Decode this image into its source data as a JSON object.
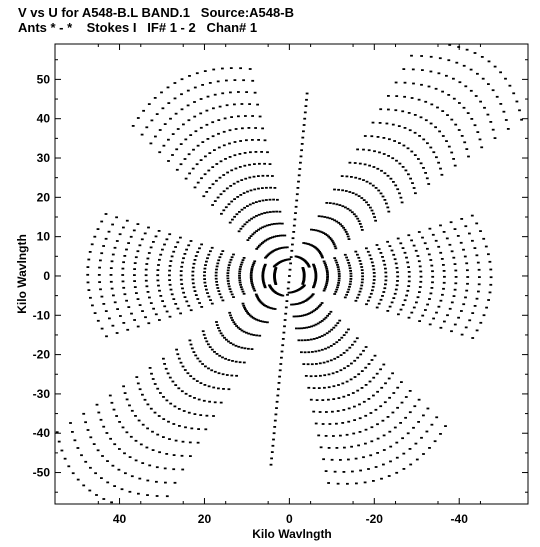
{
  "header": {
    "line1": "V vs U for A548-B.L BAND.1   Source:A548-B",
    "line2": "Ants * - *    Stokes I   IF# 1 - 2   Chan# 1"
  },
  "chart_data": {
    "type": "scatter",
    "title": "V vs U for A548-B.L BAND.1   Source:A548-B",
    "subtitle": "Ants * - *    Stokes I   IF# 1 - 2   Chan# 1",
    "xlabel": "Kilo Wavlngth",
    "ylabel": "Kilo Wavlngth",
    "xlim": [
      55.2,
      -56.2
    ],
    "ylim": [
      -58,
      59
    ],
    "x_reversed": true,
    "xticks": [
      40,
      20,
      0,
      -20,
      -40
    ],
    "yticks": [
      50,
      40,
      30,
      20,
      10,
      0,
      -10,
      -20,
      -30,
      -40,
      -50
    ],
    "grid": false,
    "arm_tips": [
      {
        "u": -50,
        "v": 57
      },
      {
        "u": 26,
        "v": 53
      },
      {
        "u": 50,
        "v": 1
      },
      {
        "u": -56,
        "v": -4
      },
      {
        "u": 48,
        "v": -56
      },
      {
        "u": -22,
        "v": -55
      },
      {
        "u": -2,
        "v": 48
      },
      {
        "u": 2,
        "v": -48
      }
    ],
    "note": "Dense u-v coverage: point-symmetric six-armed star of elliptical baseline tracks centred on (0,0), with a near-vertical linear track through the origin."
  }
}
